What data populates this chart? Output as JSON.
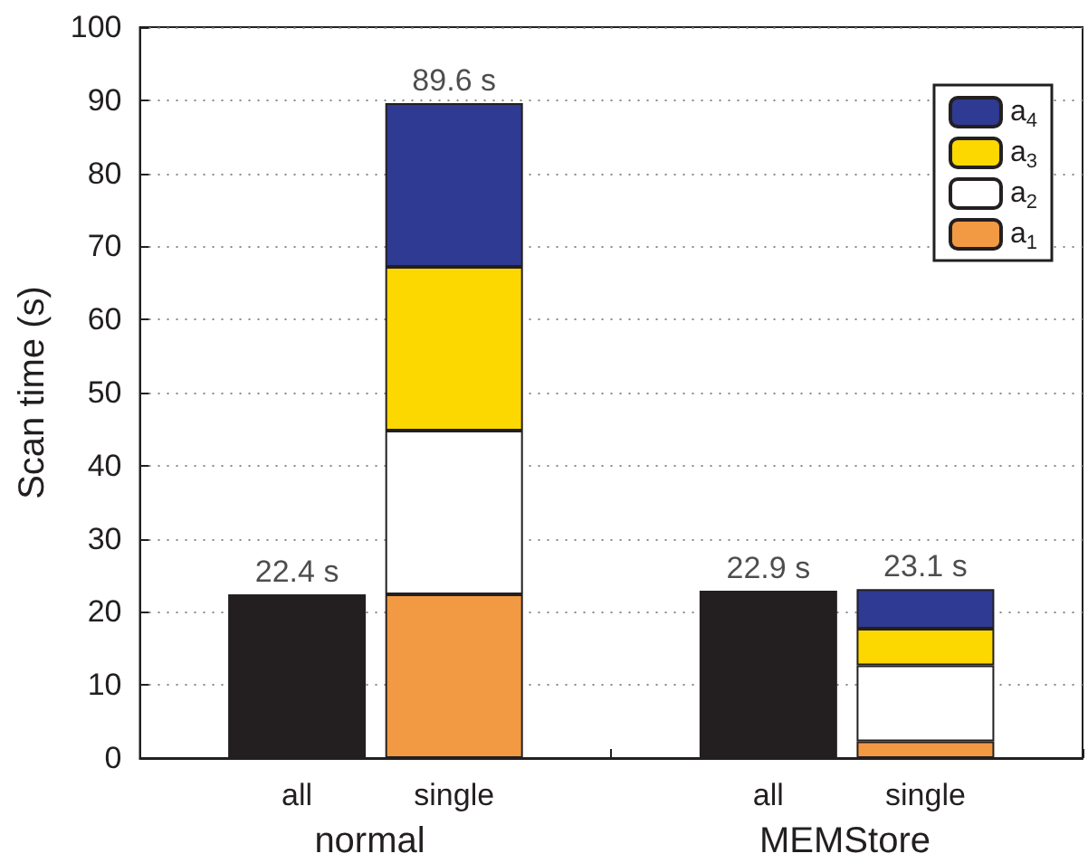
{
  "chart_data": {
    "type": "bar",
    "stacked": true,
    "ylabel": "Scan time (s)",
    "categories": [
      null,
      "all",
      "single",
      null,
      "all",
      "single",
      null
    ],
    "annotations": [
      "normal",
      "MEMStore"
    ],
    "series": [
      {
        "color": "#231f20",
        "values": [
          null,
          22.4,
          null,
          null,
          22.9,
          null,
          null
        ]
      },
      {
        "name": "a$_{1}$",
        "color": "#f29a43",
        "values": [
          null,
          null,
          22.4,
          null,
          null,
          2.3,
          null
        ]
      },
      {
        "name": "a$_{2}$",
        "color": "#ffffff",
        "values": [
          null,
          null,
          22.4,
          null,
          null,
          10.4,
          null
        ]
      },
      {
        "name": "a$_{3}$",
        "color": "#fdd800",
        "values": [
          null,
          null,
          22.4,
          null,
          null,
          5.0,
          null
        ]
      },
      {
        "name": "a$_{4}$",
        "color": "#2f3a93",
        "values": [
          null,
          null,
          22.4,
          null,
          null,
          5.4,
          null
        ]
      }
    ],
    "totals": [
      null,
      "22.4 s",
      "89.6 s",
      null,
      "22.9 s",
      "23.1 s",
      null
    ],
    "ylim": [
      0,
      100
    ],
    "yticks": [
      0,
      10,
      20,
      30,
      40,
      50,
      60,
      70,
      80,
      90,
      100
    ],
    "grid": "y",
    "legend": "top right"
  }
}
